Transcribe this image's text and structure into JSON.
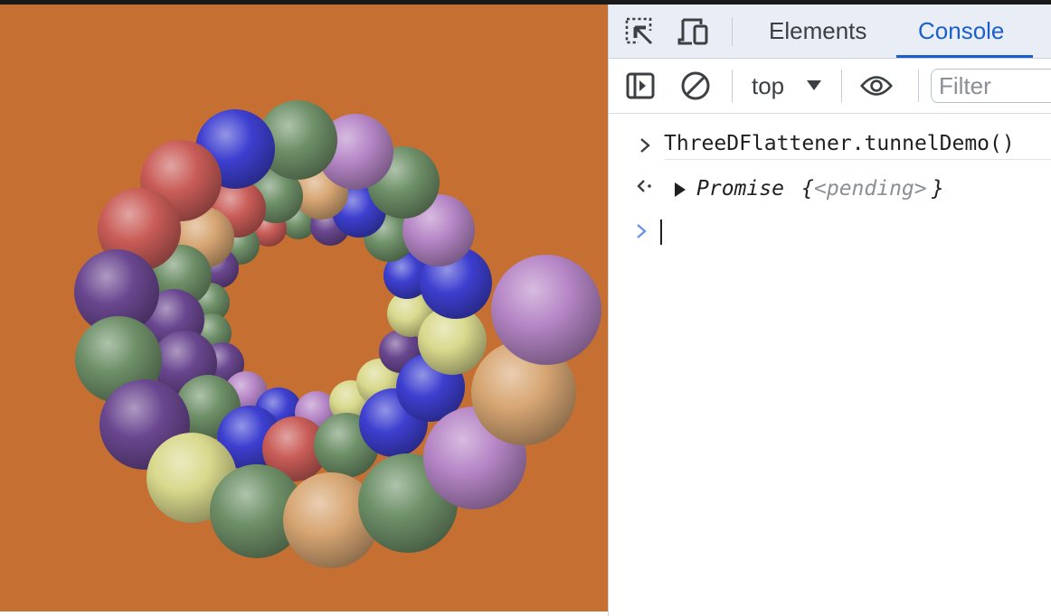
{
  "devtools": {
    "tabs": [
      {
        "label": "Elements",
        "active": false
      },
      {
        "label": "Console",
        "active": true
      }
    ],
    "toolbar": {
      "context_label": "top",
      "filter_placeholder": "Filter"
    },
    "console": {
      "command": "ThreeDFlattener.tunnelDemo()",
      "result_label": "Promise",
      "result_brace_open": "{",
      "result_state": "<pending>",
      "result_brace_close": "}",
      "input_value": ""
    },
    "icons": [
      "inspect-element-icon",
      "device-toolbar-icon",
      "sidebar-toggle-icon",
      "clear-console-icon",
      "context-dropdown-icon",
      "live-expression-eye-icon",
      "input-prompt-icon",
      "return-arrow-icon",
      "expand-triangle-icon"
    ]
  },
  "scene": {
    "background": "#c66f33",
    "sphere_colors": {
      "red": "#c95c57",
      "green": "#6e9068",
      "blue": "#3d3fd0",
      "purple": "#6a4790",
      "violet": "#b686c6",
      "tan": "#d7a673",
      "yellow": "#d9d98d"
    }
  }
}
